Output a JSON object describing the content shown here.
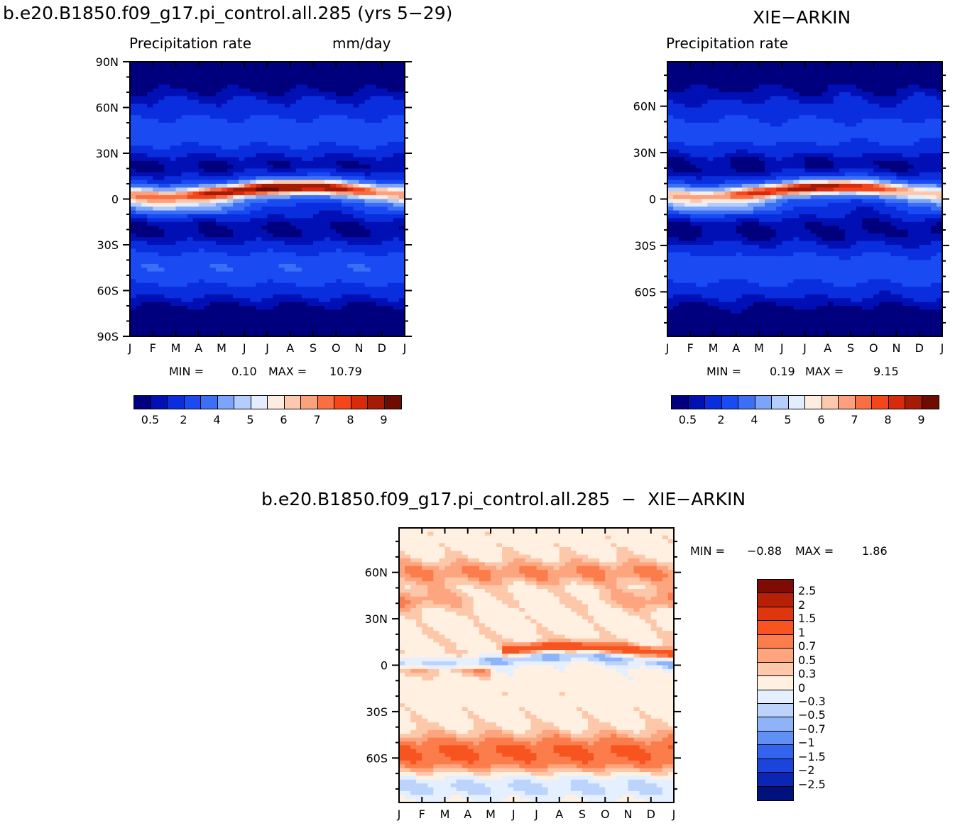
{
  "colors": {
    "precip": [
      "#00007e",
      "#0010b4",
      "#0a2ede",
      "#1a4af2",
      "#3b6ff6",
      "#7ca4fa",
      "#b4cdfc",
      "#e2edff",
      "#ffece0",
      "#fdc9ae",
      "#fca07e",
      "#fa6f42",
      "#f5461b",
      "#d82b0c",
      "#a51c06",
      "#6e0c02"
    ],
    "diff": [
      "#7e0b04",
      "#b52006",
      "#e0360d",
      "#f75420",
      "#fb7d4b",
      "#fca57f",
      "#fdc8aa",
      "#fff0e2",
      "#e4efff",
      "#bcd4fc",
      "#8fb3f8",
      "#6090f4",
      "#3264ee",
      "#1a44dc",
      "#0a26b4",
      "#00107c"
    ]
  },
  "chart_data": [
    {
      "type": "heatmap",
      "run_title": "b.e20.B1850.f09_g17.pi_control.all.285 (yrs 5−29)",
      "title": "Precipitation rate",
      "units": "mm/day",
      "x_tick_labels": [
        "J",
        "F",
        "M",
        "A",
        "M",
        "J",
        "J",
        "A",
        "S",
        "O",
        "N",
        "D",
        "J"
      ],
      "y_tick_labels": [
        "90N",
        "60N",
        "30N",
        "0",
        "30S",
        "60S",
        "90S"
      ],
      "ylim": [
        -90,
        90
      ],
      "min_label": "MIN =",
      "min_value": "0.10",
      "max_label": "MAX =",
      "max_value": "10.79",
      "colorbar_labels": [
        "0.5",
        "2",
        "4",
        "5",
        "6",
        "7",
        "8",
        "9"
      ],
      "contour_levels": [
        0.5,
        1,
        2,
        3,
        4,
        5,
        5.5,
        6,
        6.5,
        7,
        7.5,
        8,
        8.5,
        9,
        10
      ]
    },
    {
      "type": "heatmap",
      "dataset_title": "XIE−ARKIN",
      "title": "Precipitation rate",
      "x_tick_labels": [
        "J",
        "F",
        "M",
        "A",
        "M",
        "J",
        "J",
        "A",
        "S",
        "O",
        "N",
        "D",
        "J"
      ],
      "y_tick_labels": [
        "60N",
        "30N",
        "0",
        "30S",
        "60S"
      ],
      "ylim": [
        -88.75,
        88.75
      ],
      "min_label": "MIN =",
      "min_value": "0.19",
      "max_label": "MAX =",
      "max_value": "9.15",
      "colorbar_labels": [
        "0.5",
        "2",
        "4",
        "5",
        "6",
        "7",
        "8",
        "9"
      ],
      "contour_levels": [
        0.5,
        1,
        2,
        3,
        4,
        5,
        5.5,
        6,
        6.5,
        7,
        7.5,
        8,
        8.5,
        9,
        10
      ]
    },
    {
      "type": "heatmap",
      "title": "b.e20.B1850.f09_g17.pi_control.all.285  −  XIE−ARKIN",
      "x_tick_labels": [
        "J",
        "F",
        "M",
        "A",
        "M",
        "J",
        "J",
        "A",
        "S",
        "O",
        "N",
        "D",
        "J"
      ],
      "y_tick_labels": [
        "60N",
        "30N",
        "0",
        "30S",
        "60S"
      ],
      "ylim": [
        -88.75,
        88.75
      ],
      "min_label": "MIN =",
      "min_value": "−0.88",
      "max_label": "MAX =",
      "max_value": "1.86",
      "colorbar_labels": [
        "2.5",
        "2",
        "1.5",
        "1",
        "0.7",
        "0.5",
        "0.3",
        "0",
        "−0.3",
        "−0.5",
        "−0.7",
        "−1",
        "−1.5",
        "−2",
        "−2.5"
      ],
      "contour_levels": [
        2.5,
        2,
        1.5,
        1,
        0.7,
        0.5,
        0.3,
        0,
        -0.3,
        -0.5,
        -0.7,
        -1,
        -1.5,
        -2,
        -2.5
      ]
    }
  ]
}
